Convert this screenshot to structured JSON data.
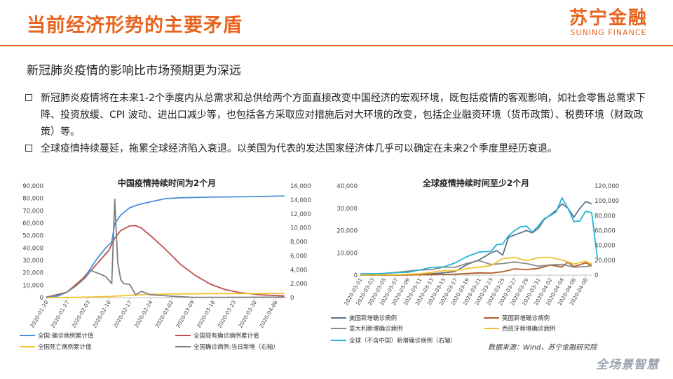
{
  "header": {
    "title": "当前经济形势的主要矛盾",
    "logo_cn": "苏宁金融",
    "logo_en": "SUNING FINANCE"
  },
  "subtitle": "新冠肺炎疫情的影响比市场预期更为深远",
  "bullets": [
    "新冠肺炎疫情将在未来1-2个季度内从总需求和总供给两个方面直接改变中国经济的宏观环境，既包括疫情的客观影响，如社会零售总需求下降、投资放缓、CPI 波动、进出口减少等，也包括各方采取应对措施后对大环境的改变，包括企业融资环境（货币政策）、税费环境（财政政策）等。",
    "全球疫情持续蔓延，拖累全球经济陷入衰退。以美国为代表的发达国家经济体几乎可以确定在未来2个季度里经历衰退。"
  ],
  "source": "数据来源：Wind，苏宁金融研究院",
  "footer_logo": "全场景智慧",
  "colors": {
    "accent": "#e8641e",
    "blue": "#4a8fd8",
    "red": "#c0504d",
    "yellow": "#f2c230",
    "gray": "#7f7f7f",
    "cyan": "#27b3d6",
    "navy": "#5b7190",
    "brown": "#b35c2a"
  },
  "chart_data": [
    {
      "type": "line",
      "title": "中国疫情持续时间为2个月",
      "x_ticks": [
        "2020-01-20",
        "2020-01-27",
        "2020-02-03",
        "2020-02-10",
        "2020-02-17",
        "2020-02-24",
        "2020-03-02",
        "2020-03-09",
        "2020-03-16",
        "2020-03-23",
        "2020-03-30",
        "2020-04-06"
      ],
      "x_range": [
        "2020-01-20",
        "2020-04-10"
      ],
      "ylim_left": [
        0,
        90000
      ],
      "ylim_right": [
        0,
        16000
      ],
      "y_left_ticks": [
        "0",
        "10,000",
        "20,000",
        "30,000",
        "40,000",
        "50,000",
        "60,000",
        "70,000",
        "80,000",
        "90,000"
      ],
      "y_right_ticks": [
        "0",
        "2,000",
        "4,000",
        "6,000",
        "8,000",
        "10,000",
        "12,000",
        "14,000",
        "16,000"
      ],
      "series": [
        {
          "name": "全国:确诊病例累计值",
          "axis": "left",
          "color": "#4a8fd8",
          "points": [
            [
              "2020-01-20",
              300
            ],
            [
              "2020-01-24",
              1300
            ],
            [
              "2020-01-27",
              4500
            ],
            [
              "2020-01-31",
              11800
            ],
            [
              "2020-02-03",
              20400
            ],
            [
              "2020-02-06",
              31200
            ],
            [
              "2020-02-09",
              40200
            ],
            [
              "2020-02-11",
              44700
            ],
            [
              "2020-02-12",
              59800
            ],
            [
              "2020-02-14",
              66500
            ],
            [
              "2020-02-17",
              72400
            ],
            [
              "2020-02-20",
              75000
            ],
            [
              "2020-02-24",
              77200
            ],
            [
              "2020-02-29",
              79800
            ],
            [
              "2020-03-05",
              80500
            ],
            [
              "2020-03-15",
              81000
            ],
            [
              "2020-03-25",
              81300
            ],
            [
              "2020-04-03",
              81600
            ],
            [
              "2020-04-09",
              82000
            ]
          ]
        },
        {
          "name": "全国现有确诊病例累计值",
          "axis": "left",
          "color": "#c0504d",
          "points": [
            [
              "2020-01-20",
              300
            ],
            [
              "2020-01-27",
              4400
            ],
            [
              "2020-02-03",
              19000
            ],
            [
              "2020-02-10",
              38000
            ],
            [
              "2020-02-12",
              48000
            ],
            [
              "2020-02-14",
              54000
            ],
            [
              "2020-02-17",
              57800
            ],
            [
              "2020-02-19",
              58000
            ],
            [
              "2020-02-21",
              56000
            ],
            [
              "2020-02-24",
              50000
            ],
            [
              "2020-02-29",
              39000
            ],
            [
              "2020-03-05",
              27000
            ],
            [
              "2020-03-10",
              18000
            ],
            [
              "2020-03-15",
              11000
            ],
            [
              "2020-03-20",
              6500
            ],
            [
              "2020-03-25",
              4000
            ],
            [
              "2020-04-01",
              2200
            ],
            [
              "2020-04-09",
              1300
            ]
          ]
        },
        {
          "name": "全国死亡病例累计值",
          "axis": "left",
          "color": "#f2c230",
          "points": [
            [
              "2020-01-20",
              0
            ],
            [
              "2020-01-27",
              100
            ],
            [
              "2020-02-03",
              400
            ],
            [
              "2020-02-10",
              900
            ],
            [
              "2020-02-17",
              1800
            ],
            [
              "2020-02-24",
              2600
            ],
            [
              "2020-03-02",
              2900
            ],
            [
              "2020-03-15",
              3200
            ],
            [
              "2020-03-30",
              3300
            ],
            [
              "2020-04-09",
              3340
            ]
          ]
        },
        {
          "name": "全国确诊病例:当日新增（右轴）",
          "axis": "right",
          "color": "#7f7f7f",
          "points": [
            [
              "2020-01-20",
              80
            ],
            [
              "2020-01-24",
              400
            ],
            [
              "2020-01-27",
              800
            ],
            [
              "2020-01-30",
              1700
            ],
            [
              "2020-02-02",
              2800
            ],
            [
              "2020-02-04",
              3900
            ],
            [
              "2020-02-05",
              3700
            ],
            [
              "2020-02-07",
              3400
            ],
            [
              "2020-02-09",
              3000
            ],
            [
              "2020-02-10",
              2500
            ],
            [
              "2020-02-11",
              2000
            ],
            [
              "2020-02-12",
              14100
            ],
            [
              "2020-02-13",
              5100
            ],
            [
              "2020-02-14",
              2600
            ],
            [
              "2020-02-15",
              2000
            ],
            [
              "2020-02-17",
              1900
            ],
            [
              "2020-02-19",
              400
            ],
            [
              "2020-02-21",
              900
            ],
            [
              "2020-02-24",
              400
            ],
            [
              "2020-02-28",
              300
            ],
            [
              "2020-03-02",
              200
            ],
            [
              "2020-03-09",
              40
            ],
            [
              "2020-03-20",
              40
            ],
            [
              "2020-04-09",
              60
            ]
          ]
        }
      ]
    },
    {
      "type": "line",
      "title": "全球疫情持续时间至少2个月",
      "x_ticks": [
        "2020-03-01",
        "2020-03-03",
        "2020-03-05",
        "2020-03-07",
        "2020-03-09",
        "2020-03-11",
        "2020-03-13",
        "2020-03-15",
        "2020-03-17",
        "2020-03-19",
        "2020-03-21",
        "2020-03-23",
        "2020-03-25",
        "2020-03-27",
        "2020-03-29",
        "2020-03-31",
        "2020-04-02",
        "2020-04-04",
        "2020-04-06",
        "2020-04-08"
      ],
      "x_range": [
        "2020-03-01",
        "2020-04-09"
      ],
      "ylim_left": [
        0,
        40000
      ],
      "ylim_right": [
        0,
        120000
      ],
      "y_left_ticks": [
        "0",
        "10,000",
        "20,000",
        "30,000",
        "40,000"
      ],
      "y_right_ticks": [
        "0",
        "20,000",
        "40,000",
        "60,000",
        "80,000",
        "100,000",
        "120,000"
      ],
      "series": [
        {
          "name": "美国新增确诊病例",
          "axis": "left",
          "color": "#5b7190",
          "points": [
            [
              "2020-03-01",
              10
            ],
            [
              "2020-03-05",
              50
            ],
            [
              "2020-03-09",
              200
            ],
            [
              "2020-03-11",
              300
            ],
            [
              "2020-03-13",
              600
            ],
            [
              "2020-03-15",
              1000
            ],
            [
              "2020-03-17",
              1600
            ],
            [
              "2020-03-19",
              4800
            ],
            [
              "2020-03-21",
              6800
            ],
            [
              "2020-03-23",
              10000
            ],
            [
              "2020-03-24",
              11000
            ],
            [
              "2020-03-25",
              9000
            ],
            [
              "2020-03-26",
              17000
            ],
            [
              "2020-03-27",
              18000
            ],
            [
              "2020-03-28",
              19000
            ],
            [
              "2020-03-29",
              20000
            ],
            [
              "2020-03-30",
              19000
            ],
            [
              "2020-03-31",
              21000
            ],
            [
              "2020-04-01",
              25000
            ],
            [
              "2020-04-02",
              27000
            ],
            [
              "2020-04-03",
              29000
            ],
            [
              "2020-04-04",
              32000
            ],
            [
              "2020-04-05",
              30000
            ],
            [
              "2020-04-06",
              26000
            ],
            [
              "2020-04-07",
              30000
            ],
            [
              "2020-04-08",
              33000
            ],
            [
              "2020-04-09",
              32000
            ]
          ]
        },
        {
          "name": "英国新增确诊病例",
          "axis": "left",
          "color": "#b35c2a",
          "points": [
            [
              "2020-03-01",
              10
            ],
            [
              "2020-03-08",
              60
            ],
            [
              "2020-03-13",
              200
            ],
            [
              "2020-03-17",
              400
            ],
            [
              "2020-03-21",
              1000
            ],
            [
              "2020-03-23",
              900
            ],
            [
              "2020-03-25",
              1500
            ],
            [
              "2020-03-27",
              2800
            ],
            [
              "2020-03-29",
              2500
            ],
            [
              "2020-03-31",
              3000
            ],
            [
              "2020-04-02",
              4500
            ],
            [
              "2020-04-04",
              3700
            ],
            [
              "2020-04-05",
              5800
            ],
            [
              "2020-04-06",
              3800
            ],
            [
              "2020-04-08",
              5500
            ],
            [
              "2020-04-09",
              4300
            ]
          ]
        },
        {
          "name": "意大利新增确诊病例",
          "axis": "left",
          "color": "#8a8a8a",
          "points": [
            [
              "2020-03-01",
              600
            ],
            [
              "2020-03-03",
              500
            ],
            [
              "2020-03-05",
              800
            ],
            [
              "2020-03-07",
              1200
            ],
            [
              "2020-03-09",
              1800
            ],
            [
              "2020-03-11",
              2300
            ],
            [
              "2020-03-13",
              2500
            ],
            [
              "2020-03-15",
              3600
            ],
            [
              "2020-03-17",
              3500
            ],
            [
              "2020-03-19",
              5300
            ],
            [
              "2020-03-21",
              6500
            ],
            [
              "2020-03-23",
              4800
            ],
            [
              "2020-03-25",
              5200
            ],
            [
              "2020-03-27",
              5900
            ],
            [
              "2020-03-29",
              5200
            ],
            [
              "2020-03-31",
              4000
            ],
            [
              "2020-04-02",
              4600
            ],
            [
              "2020-04-04",
              4800
            ],
            [
              "2020-04-06",
              3600
            ],
            [
              "2020-04-08",
              3800
            ],
            [
              "2020-04-09",
              4200
            ]
          ]
        },
        {
          "name": "西班牙新增确诊病例",
          "axis": "left",
          "color": "#f2c230",
          "points": [
            [
              "2020-03-01",
              20
            ],
            [
              "2020-03-07",
              200
            ],
            [
              "2020-03-11",
              600
            ],
            [
              "2020-03-13",
              1200
            ],
            [
              "2020-03-15",
              2000
            ],
            [
              "2020-03-17",
              2000
            ],
            [
              "2020-03-19",
              3000
            ],
            [
              "2020-03-21",
              3500
            ],
            [
              "2020-03-23",
              4300
            ],
            [
              "2020-03-25",
              7400
            ],
            [
              "2020-03-27",
              8000
            ],
            [
              "2020-03-29",
              6500
            ],
            [
              "2020-03-31",
              7800
            ],
            [
              "2020-04-02",
              8000
            ],
            [
              "2020-04-04",
              6800
            ],
            [
              "2020-04-06",
              5000
            ],
            [
              "2020-04-08",
              6200
            ],
            [
              "2020-04-09",
              5000
            ]
          ]
        },
        {
          "name": "全球（不含中国）新增确诊病例（右轴）",
          "axis": "right",
          "color": "#27b3d6",
          "points": [
            [
              "2020-03-01",
              1800
            ],
            [
              "2020-03-03",
              1900
            ],
            [
              "2020-03-05",
              2300
            ],
            [
              "2020-03-07",
              3500
            ],
            [
              "2020-03-09",
              3800
            ],
            [
              "2020-03-11",
              7000
            ],
            [
              "2020-03-13",
              10500
            ],
            [
              "2020-03-15",
              11000
            ],
            [
              "2020-03-17",
              16500
            ],
            [
              "2020-03-19",
              25000
            ],
            [
              "2020-03-21",
              31000
            ],
            [
              "2020-03-23",
              32000
            ],
            [
              "2020-03-24",
              41000
            ],
            [
              "2020-03-25",
              42000
            ],
            [
              "2020-03-26",
              53000
            ],
            [
              "2020-03-27",
              60000
            ],
            [
              "2020-03-28",
              65000
            ],
            [
              "2020-03-29",
              66000
            ],
            [
              "2020-03-30",
              58000
            ],
            [
              "2020-03-31",
              66000
            ],
            [
              "2020-04-01",
              76000
            ],
            [
              "2020-04-02",
              80000
            ],
            [
              "2020-04-03",
              85000
            ],
            [
              "2020-04-04",
              104000
            ],
            [
              "2020-04-05",
              90000
            ],
            [
              "2020-04-06",
              72000
            ],
            [
              "2020-04-07",
              73000
            ],
            [
              "2020-04-08",
              86000
            ],
            [
              "2020-04-09",
              84000
            ],
            [
              "2020-04-10",
              20000
            ]
          ]
        }
      ]
    }
  ]
}
